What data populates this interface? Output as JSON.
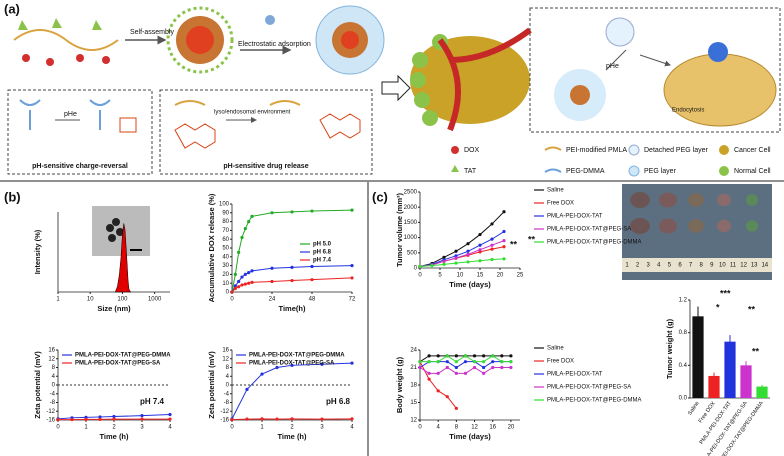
{
  "panel_labels": [
    "(a)",
    "(b)",
    "(c)"
  ],
  "scheme": {
    "self_assembly": "Self-assembly",
    "electrostatic": "Electrostatic adsorption",
    "pHe_1": "pHe",
    "pHe_2": "pHe",
    "lyso": "lyso/endosomal environment",
    "charge_reversal": "pH-sensitive charge-reversal",
    "drug_release": "pH-sensitive drug release",
    "endocytosis": "Endocytosis"
  },
  "legend": [
    "DOX",
    "PEI-modified PMLA",
    "Detached PEG layer",
    "Cancer Cell",
    "TAT",
    "PEG-DMMA",
    "PEG layer",
    "Normal Cell"
  ],
  "photo": {
    "ruler": [
      "1",
      "2",
      "3",
      "4",
      "5",
      "6",
      "7",
      "8",
      "9",
      "10",
      "11",
      "12",
      "13",
      "14"
    ]
  },
  "chart_data": [
    {
      "type": "area",
      "x_label": "Size (nm)",
      "y_label": "Intensity (%)",
      "log_x": true,
      "x": [
        60,
        70,
        80,
        90,
        100,
        110,
        120,
        130,
        140,
        150,
        160,
        180
      ],
      "values": [
        0,
        1,
        3,
        6,
        10,
        12,
        11,
        8,
        5,
        2,
        0.5,
        0
      ],
      "color": "#e00000",
      "xlim": [
        1,
        3000
      ],
      "xticks": [
        1,
        10,
        100,
        1000
      ],
      "ylim": [
        0,
        14
      ]
    },
    {
      "type": "line",
      "x_label": "Time(h)",
      "y_label": "Accumulative DOX release (%)",
      "x": [
        0,
        2,
        4,
        6,
        8,
        10,
        12,
        24,
        36,
        48,
        72
      ],
      "series": [
        {
          "name": "pH 5.0",
          "color": "#22aa22",
          "values": [
            0,
            20,
            45,
            62,
            72,
            80,
            86,
            90,
            91,
            92,
            93
          ]
        },
        {
          "name": "pH 6.8",
          "color": "#2233dd",
          "values": [
            0,
            7,
            12,
            17,
            20,
            22,
            24,
            27,
            28,
            29,
            30
          ]
        },
        {
          "name": "pH 7.4",
          "color": "#ee2222",
          "values": [
            0,
            4,
            6,
            8,
            9,
            10,
            11,
            12,
            13,
            14,
            16
          ]
        }
      ],
      "xlim": [
        0,
        72
      ],
      "xticks": [
        0,
        24,
        48,
        72
      ],
      "ylim": [
        0,
        100
      ],
      "yticks": [
        0,
        10,
        20,
        30,
        40,
        50,
        60,
        70,
        80,
        90,
        100
      ],
      "legend": "right"
    },
    {
      "type": "line",
      "x_label": "Time (h)",
      "y_label": "Zeta potential (mV)",
      "annotation": "pH 7.4",
      "hline": 0,
      "x": [
        0,
        0.5,
        1,
        1.5,
        2,
        3,
        4
      ],
      "series": [
        {
          "name": "PMLA-PEI-DOX-TAT@PEG-DMMA",
          "color": "#2233dd",
          "values": [
            -15.5,
            -15,
            -14.8,
            -14.6,
            -14.4,
            -14,
            -13.5
          ]
        },
        {
          "name": "PMLA-PEI-DOX-TAT@PEG-SA",
          "color": "#ee2222",
          "values": [
            -15.8,
            -15.8,
            -15.7,
            -15.7,
            -15.6,
            -15.6,
            -15.6
          ]
        }
      ],
      "xlim": [
        0,
        4
      ],
      "xticks": [
        0,
        1,
        2,
        3,
        4
      ],
      "ylim": [
        -16,
        16
      ],
      "yticks": [
        16,
        12,
        8,
        4,
        0,
        -4,
        -8,
        -12,
        -16
      ],
      "legend": "top"
    },
    {
      "type": "line",
      "x_label": "Time (h)",
      "y_label": "Zeta potential (mV)",
      "annotation": "pH 6.8",
      "hline": 0,
      "x": [
        0,
        0.5,
        1,
        1.5,
        2,
        3,
        4
      ],
      "series": [
        {
          "name": "PMLA-PEI-DOX-TAT@PEG-DMMA",
          "color": "#2233dd",
          "values": [
            -15.5,
            -2,
            5,
            8,
            9,
            9.5,
            10
          ]
        },
        {
          "name": "PMLA-PEI-DOX-TAT@PEG-SA",
          "color": "#ee2222",
          "values": [
            -15.8,
            -15.6,
            -15.5,
            -15.6,
            -15.5,
            -15.6,
            -15.5
          ]
        }
      ],
      "xlim": [
        0,
        4
      ],
      "xticks": [
        0,
        1,
        2,
        3,
        4
      ],
      "ylim": [
        -16,
        16
      ],
      "yticks": [
        16,
        12,
        8,
        4,
        0,
        -4,
        -8,
        -12,
        -16
      ],
      "legend": "top"
    },
    {
      "type": "line",
      "x_label": "Time (days)",
      "y_label": "Tumor volume (mm³)",
      "annotations": [
        "**",
        "**"
      ],
      "x": [
        0,
        3,
        6,
        9,
        12,
        15,
        18,
        21
      ],
      "series": [
        {
          "name": "Saline",
          "color": "#111111",
          "values": [
            50,
            150,
            350,
            550,
            800,
            1100,
            1450,
            1850
          ]
        },
        {
          "name": "Free DOX",
          "color": "#ee2222",
          "values": [
            50,
            110,
            220,
            320,
            420,
            530,
            620,
            700
          ]
        },
        {
          "name": "PMLA-PEI-DOX-TAT",
          "color": "#2233dd",
          "values": [
            50,
            120,
            270,
            400,
            550,
            750,
            950,
            1200
          ]
        },
        {
          "name": "PMLA-PEI-DOX-TAT@PEG-SA",
          "color": "#cc33cc",
          "values": [
            50,
            100,
            220,
            330,
            450,
            600,
            750,
            900
          ]
        },
        {
          "name": "PMLA-PEI-DOX-TAT@PEG-DMMA",
          "color": "#33dd33",
          "values": [
            50,
            80,
            120,
            160,
            200,
            240,
            280,
            300
          ]
        }
      ],
      "xlim": [
        0,
        25
      ],
      "xticks": [
        0,
        5,
        10,
        15,
        20,
        25
      ],
      "ylim": [
        0,
        2500
      ],
      "yticks": [
        0,
        500,
        1000,
        1500,
        2000,
        2500
      ],
      "legend": "right"
    },
    {
      "type": "line",
      "x_label": "Time (days)",
      "y_label": "Body weight (g)",
      "x": [
        0,
        2,
        4,
        6,
        8,
        10,
        12,
        14,
        16,
        18,
        20
      ],
      "series": [
        {
          "name": "Saline",
          "color": "#111111",
          "values": [
            22,
            23,
            23,
            23,
            23,
            23,
            23,
            23,
            23,
            23,
            23
          ]
        },
        {
          "name": "Free DOX",
          "color": "#ee2222",
          "values": [
            22,
            19,
            17,
            16,
            14,
            null,
            null,
            null,
            null,
            null,
            null
          ]
        },
        {
          "name": "PMLA-PEI-DOX-TAT",
          "color": "#2233dd",
          "values": [
            21,
            22,
            22,
            22,
            21,
            22,
            22,
            21,
            22,
            22,
            22
          ]
        },
        {
          "name": "PMLA-PEI-DOX-TAT@PEG-SA",
          "color": "#cc33cc",
          "values": [
            21,
            20,
            20,
            21,
            20,
            20,
            21,
            20,
            21,
            21,
            21
          ]
        },
        {
          "name": "PMLA-PEI-DOX-TAT@PEG-DMMA",
          "color": "#33dd33",
          "values": [
            22,
            22,
            22,
            23,
            22,
            23,
            22,
            22,
            23,
            22,
            22
          ]
        }
      ],
      "xlim": [
        0,
        22
      ],
      "xticks": [
        0,
        4,
        8,
        12,
        16,
        20
      ],
      "ylim": [
        12,
        24
      ],
      "yticks": [
        12,
        15,
        18,
        21,
        24
      ],
      "legend": "right"
    },
    {
      "type": "bar",
      "y_label": "Tumor weight (g)",
      "annotations": [
        "*",
        "***",
        "**",
        "**"
      ],
      "categories": [
        "Saline",
        "Free DOX",
        "PMLA-PEI-DOX-TAT",
        "PMLA-PEI-DOX-TAT@PEG-SA",
        "PMLA-PEI-DOX-TAT@PEG-DMMA"
      ],
      "values": [
        1.0,
        0.27,
        0.69,
        0.4,
        0.14
      ],
      "errors": [
        0.12,
        0.04,
        0.08,
        0.05,
        0.02
      ],
      "colors": [
        "#111111",
        "#ee2222",
        "#2233dd",
        "#cc33cc",
        "#33dd33"
      ],
      "ylim": [
        0,
        1.2
      ],
      "yticks": [
        {
          "value": 0,
          "label": "0.0"
        },
        0.4,
        0.8,
        1.2
      ]
    }
  ]
}
